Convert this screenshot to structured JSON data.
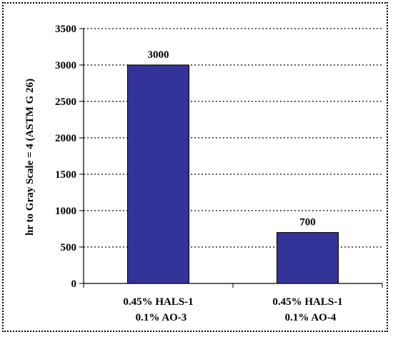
{
  "chart_data": {
    "type": "bar",
    "title": "",
    "xlabel": "",
    "ylabel": "hr to Gray Scale = 4 (ASTM G 26)",
    "categories": [
      [
        "0.45% HALS-1",
        "0.1% AO-3"
      ],
      [
        "0.45% HALS-1",
        "0.1% AO-4"
      ]
    ],
    "values": [
      3000,
      700
    ],
    "data_labels": [
      "3000",
      "700"
    ],
    "ylim": [
      0,
      3500
    ],
    "yticks": [
      0,
      500,
      1000,
      1500,
      2000,
      2500,
      3000,
      3500
    ],
    "ytick_labels": [
      "0",
      "500",
      "1000",
      "1500",
      "2000",
      "2500",
      "3000",
      "3500"
    ],
    "grid": "horizontal-dotted",
    "legend": "none",
    "bar_color": "#333399"
  }
}
